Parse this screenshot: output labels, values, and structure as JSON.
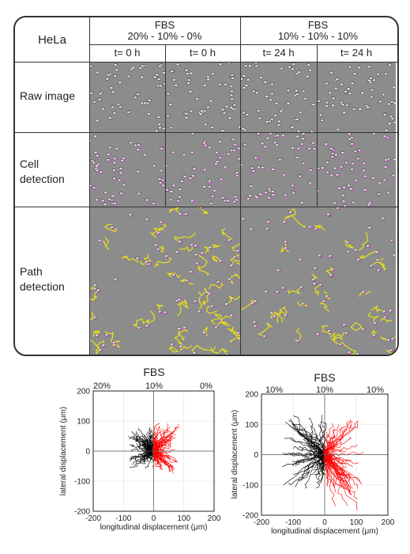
{
  "figure": {
    "cell_line": "HeLa",
    "groups": [
      {
        "line1": "FBS",
        "line2": "20% - 10% - 0%"
      },
      {
        "line1": "FBS",
        "line2": "10% - 10% - 10%"
      }
    ],
    "time_labels": [
      "t= 0 h",
      "t= 0 h",
      "t= 24 h",
      "t= 24 h"
    ],
    "rows": [
      {
        "label_lines": [
          "Raw image"
        ]
      },
      {
        "label_lines": [
          "Cell",
          "detection"
        ]
      },
      {
        "label_lines": [
          "Path",
          "detection"
        ]
      }
    ]
  },
  "plots": [
    {
      "title": "FBS",
      "top_labels": [
        "20%",
        "10%",
        "0%"
      ],
      "xlabel": "longitudinal displacement (μm)",
      "ylabel": "lateral displacement (μm)",
      "xticks": [
        "-200",
        "-100",
        "0",
        "100",
        "200"
      ],
      "yticks": [
        "200",
        "100",
        "0",
        "-100",
        "-200"
      ]
    },
    {
      "title": "FBS",
      "top_labels": [
        "10%",
        "10%",
        "10%"
      ],
      "xlabel": "longitudinal displacement (μm)",
      "ylabel": "lateral displacement (μm)",
      "xticks": [
        "-200",
        "-100",
        "0",
        "100",
        "200"
      ],
      "yticks": [
        "200",
        "100",
        "0",
        "-100",
        "-200"
      ]
    }
  ],
  "chart_data": [
    {
      "type": "line",
      "title": "FBS",
      "xlabel": "longitudinal displacement (μm)",
      "ylabel": "lateral displacement (μm)",
      "xlim": [
        -200,
        200
      ],
      "ylim": [
        -200,
        200
      ],
      "grid": true,
      "top_labels": [
        "20%",
        "10%",
        "0%"
      ],
      "series": [
        {
          "color": "#000000",
          "values": "cell trajectories ending at negative longitudinal displacement",
          "extent_x": [
            -80,
            0
          ],
          "extent_y": [
            -60,
            80
          ]
        },
        {
          "color": "#ff0000",
          "values": "cell trajectories ending at positive longitudinal displacement",
          "extent_x": [
            0,
            80
          ],
          "extent_y": [
            -70,
            90
          ]
        }
      ]
    },
    {
      "type": "line",
      "title": "FBS",
      "xlabel": "longitudinal displacement (μm)",
      "ylabel": "lateral displacement (μm)",
      "xlim": [
        -200,
        200
      ],
      "ylim": [
        -200,
        200
      ],
      "grid": true,
      "top_labels": [
        "10%",
        "10%",
        "10%"
      ],
      "series": [
        {
          "color": "#000000",
          "values": "cell trajectories ending at negative longitudinal displacement",
          "extent_x": [
            -130,
            0
          ],
          "extent_y": [
            -120,
            140
          ]
        },
        {
          "color": "#ff0000",
          "values": "cell trajectories ending at positive longitudinal displacement",
          "extent_x": [
            0,
            120
          ],
          "extent_y": [
            -200,
            120
          ]
        }
      ]
    }
  ]
}
